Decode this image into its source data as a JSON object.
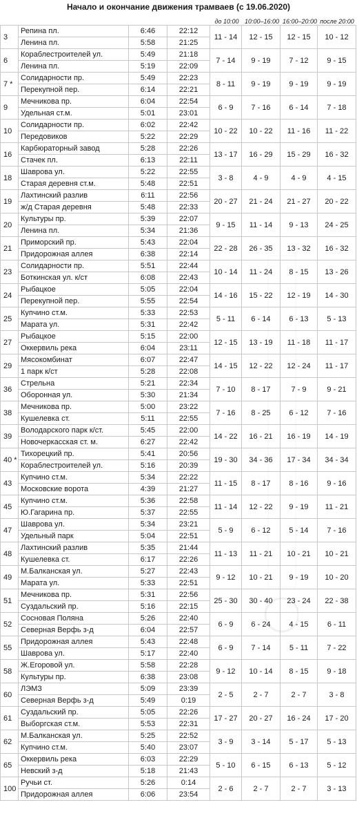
{
  "title": "Начало и окончание движения трамваев (с 19.06.2020)",
  "interval_headers": [
    "до 10:00",
    "10:00–16:00",
    "16:00–20:00",
    "после 20:00"
  ],
  "routes": [
    {
      "num": "3",
      "stops": [
        [
          "Репина пл.",
          "6:46",
          "22:12"
        ],
        [
          "Ленина пл.",
          "5:58",
          "21:25"
        ]
      ],
      "iv": [
        "11 - 14",
        "12 - 15",
        "12 - 15",
        "10 - 12"
      ]
    },
    {
      "num": "6",
      "stops": [
        [
          "Кораблестроителей ул.",
          "5:49",
          "21:18"
        ],
        [
          "Ленина пл.",
          "5:19",
          "22:09"
        ]
      ],
      "iv": [
        "7 - 14",
        "9 - 19",
        "7 - 12",
        "9 - 15"
      ]
    },
    {
      "num": "7 *",
      "stops": [
        [
          "Солидарности пр.",
          "5:49",
          "22:23"
        ],
        [
          "Перекупной пер.",
          "6:14",
          "22:21"
        ]
      ],
      "iv": [
        "8 - 11",
        "9 - 19",
        "9 - 19",
        "9 - 19"
      ]
    },
    {
      "num": "9",
      "stops": [
        [
          "Мечникова пр.",
          "6:04",
          "22:54"
        ],
        [
          "Удельная ст.м.",
          "5:01",
          "23:01"
        ]
      ],
      "iv": [
        "6 - 9",
        "7 - 16",
        "6 - 14",
        "7 - 18"
      ]
    },
    {
      "num": "10",
      "stops": [
        [
          "Солидарности пр.",
          "6:02",
          "22:42"
        ],
        [
          "Передовиков",
          "5:22",
          "22:29"
        ]
      ],
      "iv": [
        "10 - 22",
        "10 - 22",
        "11 - 16",
        "11 - 22"
      ]
    },
    {
      "num": "16",
      "stops": [
        [
          "Карбюраторный завод",
          "5:28",
          "22:26"
        ],
        [
          "Стачек пл.",
          "6:13",
          "22:11"
        ]
      ],
      "iv": [
        "13 - 17",
        "16 - 29",
        "15 - 29",
        "16 - 32"
      ]
    },
    {
      "num": "18",
      "stops": [
        [
          "Шаврова ул.",
          "5:22",
          "22:55"
        ],
        [
          "Старая деревня ст.м.",
          "5:48",
          "22:51"
        ]
      ],
      "iv": [
        "3 - 8",
        "4 - 9",
        "4 - 9",
        "4 - 15"
      ]
    },
    {
      "num": "19",
      "stops": [
        [
          "Лахтинский разлив",
          "6:11",
          "22:56"
        ],
        [
          "ж/д Старая деревня",
          "5:48",
          "22:33"
        ]
      ],
      "iv": [
        "20 - 27",
        "21 - 24",
        "21 - 27",
        "20 - 22"
      ]
    },
    {
      "num": "20",
      "stops": [
        [
          "Культуры пр.",
          "5:39",
          "22:07"
        ],
        [
          "Ленина пл.",
          "5:34",
          "21:36"
        ]
      ],
      "iv": [
        "9 - 15",
        "11 - 14",
        "9 - 13",
        "24 - 25"
      ]
    },
    {
      "num": "21",
      "stops": [
        [
          "Приморский пр.",
          "5:43",
          "22:04"
        ],
        [
          "Придорожная аллея",
          "6:38",
          "22:14"
        ]
      ],
      "iv": [
        "22 - 28",
        "26 - 35",
        "13 - 32",
        "16 - 32"
      ]
    },
    {
      "num": "23",
      "stops": [
        [
          "Солидарности пр.",
          "5:51",
          "22:44"
        ],
        [
          "Боткинская ул. к/ст",
          "6:08",
          "22:43"
        ]
      ],
      "iv": [
        "10 - 14",
        "11 - 24",
        "8 - 15",
        "13 - 26"
      ]
    },
    {
      "num": "24",
      "stops": [
        [
          "Рыбацкое",
          "5:05",
          "22:04"
        ],
        [
          "Перекупной пер.",
          "5:55",
          "22:54"
        ]
      ],
      "iv": [
        "14 - 16",
        "15 - 22",
        "12 - 19",
        "14 - 30"
      ]
    },
    {
      "num": "25",
      "stops": [
        [
          "Купчино ст.м.",
          "5:33",
          "22:53"
        ],
        [
          "Марата ул.",
          "5:31",
          "22:42"
        ]
      ],
      "iv": [
        "5 - 11",
        "6 - 14",
        "6 - 13",
        "5 - 13"
      ]
    },
    {
      "num": "27",
      "stops": [
        [
          "Рыбацкое",
          "5:15",
          "22:00"
        ],
        [
          "Оккервиль река",
          "6:04",
          "23:11"
        ]
      ],
      "iv": [
        "12 - 15",
        "13 - 19",
        "11 - 18",
        "11 - 17"
      ]
    },
    {
      "num": "29",
      "stops": [
        [
          "Мясокомбинат",
          "6:07",
          "22:47"
        ],
        [
          "1 парк к/ст",
          "5:28",
          "22:08"
        ]
      ],
      "iv": [
        "14 - 15",
        "12 - 22",
        "12 - 24",
        "11 - 17"
      ]
    },
    {
      "num": "36",
      "stops": [
        [
          "Стрельна",
          "5:21",
          "22:34"
        ],
        [
          "Оборонная ул.",
          "5:30",
          "21:34"
        ]
      ],
      "iv": [
        "7 - 10",
        "8 - 17",
        "7 - 9",
        "9 - 21"
      ]
    },
    {
      "num": "38",
      "stops": [
        [
          "Мечникова пр.",
          "5:00",
          "23:22"
        ],
        [
          "Кушелевка ст.",
          "5:11",
          "22:55"
        ]
      ],
      "iv": [
        "7 - 16",
        "8 - 25",
        "6 - 12",
        "7 - 16"
      ]
    },
    {
      "num": "39",
      "stops": [
        [
          "Володарского парк к/ст.",
          "5:45",
          "22:00"
        ],
        [
          "Новочеркасская ст. м.",
          "6:27",
          "22:42"
        ]
      ],
      "iv": [
        "14 - 22",
        "16 - 21",
        "16 - 19",
        "14 - 19"
      ]
    },
    {
      "num": "40 *",
      "stops": [
        [
          "Тихорецкий пр.",
          "5:41",
          "20:56"
        ],
        [
          "Кораблестроителей ул.",
          "5:16",
          "20:39"
        ]
      ],
      "iv": [
        "19 - 30",
        "34 - 36",
        "17 - 34",
        "34 - 34"
      ]
    },
    {
      "num": "43",
      "stops": [
        [
          "Купчино ст.м.",
          "5:34",
          "22:22"
        ],
        [
          "Московские ворота",
          "4:39",
          "21:27"
        ]
      ],
      "iv": [
        "11 - 15",
        "8 - 17",
        "8 - 16",
        "9 - 16"
      ]
    },
    {
      "num": "45",
      "stops": [
        [
          "Купчино ст.м.",
          "5:36",
          "22:58"
        ],
        [
          "Ю.Гагарина пр.",
          "5:37",
          "22:55"
        ]
      ],
      "iv": [
        "11 - 14",
        "12 - 22",
        "9 - 19",
        "11 - 21"
      ]
    },
    {
      "num": "47",
      "stops": [
        [
          "Шаврова ул.",
          "5:34",
          "23:21"
        ],
        [
          "Удельный парк",
          "5:04",
          "22:51"
        ]
      ],
      "iv": [
        "5 - 9",
        "6 - 12",
        "5 - 14",
        "7 - 16"
      ]
    },
    {
      "num": "48",
      "stops": [
        [
          "Лахтинский разлив",
          "5:35",
          "21:44"
        ],
        [
          "Кушелевка ст.",
          "6:17",
          "22:26"
        ]
      ],
      "iv": [
        "11 - 13",
        "11 - 21",
        "10 - 21",
        "10 - 21"
      ]
    },
    {
      "num": "49",
      "stops": [
        [
          "М.Балканская ул.",
          "5:27",
          "22:43"
        ],
        [
          "Марата ул.",
          "5:33",
          "22:51"
        ]
      ],
      "iv": [
        "9 - 12",
        "10 - 21",
        "9 - 19",
        "10 - 20"
      ]
    },
    {
      "num": "51",
      "stops": [
        [
          "Мечникова пр.",
          "5:31",
          "22:56"
        ],
        [
          "Суздальский пр.",
          "5:16",
          "22:15"
        ]
      ],
      "iv": [
        "25 - 30",
        "30 - 40",
        "23 - 24",
        "22 - 38"
      ]
    },
    {
      "num": "52",
      "stops": [
        [
          "Сосновая Поляна",
          "5:26",
          "22:40"
        ],
        [
          "Северная Верфь з-д",
          "6:04",
          "22:57"
        ]
      ],
      "iv": [
        "6 - 9",
        "6 - 24",
        "4 - 15",
        "6 - 11"
      ]
    },
    {
      "num": "55",
      "stops": [
        [
          "Придорожная аллея",
          "5:43",
          "22:48"
        ],
        [
          "Шаврова ул.",
          "5:17",
          "22:40"
        ]
      ],
      "iv": [
        "6 - 9",
        "7 - 14",
        "5 - 11",
        "7 - 22"
      ]
    },
    {
      "num": "58",
      "stops": [
        [
          "Ж.Егоровой ул.",
          "5:58",
          "22:28"
        ],
        [
          "Культуры пр.",
          "6:38",
          "23:08"
        ]
      ],
      "iv": [
        "9 - 12",
        "10 - 14",
        "8 - 15",
        "9 - 18"
      ]
    },
    {
      "num": "60",
      "stops": [
        [
          "ЛЭМЗ",
          "5:09",
          "23:39"
        ],
        [
          "Северная Верфь з-д",
          "5:49",
          "0:19"
        ]
      ],
      "iv": [
        "2 - 5",
        "2 - 7",
        "2 - 7",
        "3 - 8"
      ]
    },
    {
      "num": "61",
      "stops": [
        [
          "Суздальский пр.",
          "5:05",
          "22:26"
        ],
        [
          "Выборгская ст.м.",
          "5:53",
          "22:31"
        ]
      ],
      "iv": [
        "17 - 27",
        "20 - 27",
        "16 - 24",
        "17 - 20"
      ]
    },
    {
      "num": "62",
      "stops": [
        [
          "М.Балканская ул.",
          "5:25",
          "22:52"
        ],
        [
          "Купчино ст.м.",
          "5:40",
          "23:07"
        ]
      ],
      "iv": [
        "3 - 9",
        "3 - 14",
        "5 - 17",
        "5 - 13"
      ]
    },
    {
      "num": "65",
      "stops": [
        [
          "Оккервиль река",
          "6:03",
          "22:29"
        ],
        [
          "Невский з-д",
          "5:18",
          "21:43"
        ]
      ],
      "iv": [
        "5 - 10",
        "6 - 15",
        "6 - 13",
        "5 - 12"
      ]
    },
    {
      "num": "100",
      "stops": [
        [
          "Ручьи ст.",
          "5:26",
          "0:14"
        ],
        [
          "Придорожная аллея",
          "6:06",
          "23:54"
        ]
      ],
      "iv": [
        "2 - 6",
        "2 - 7",
        "2 - 7",
        "3 - 13"
      ]
    }
  ]
}
